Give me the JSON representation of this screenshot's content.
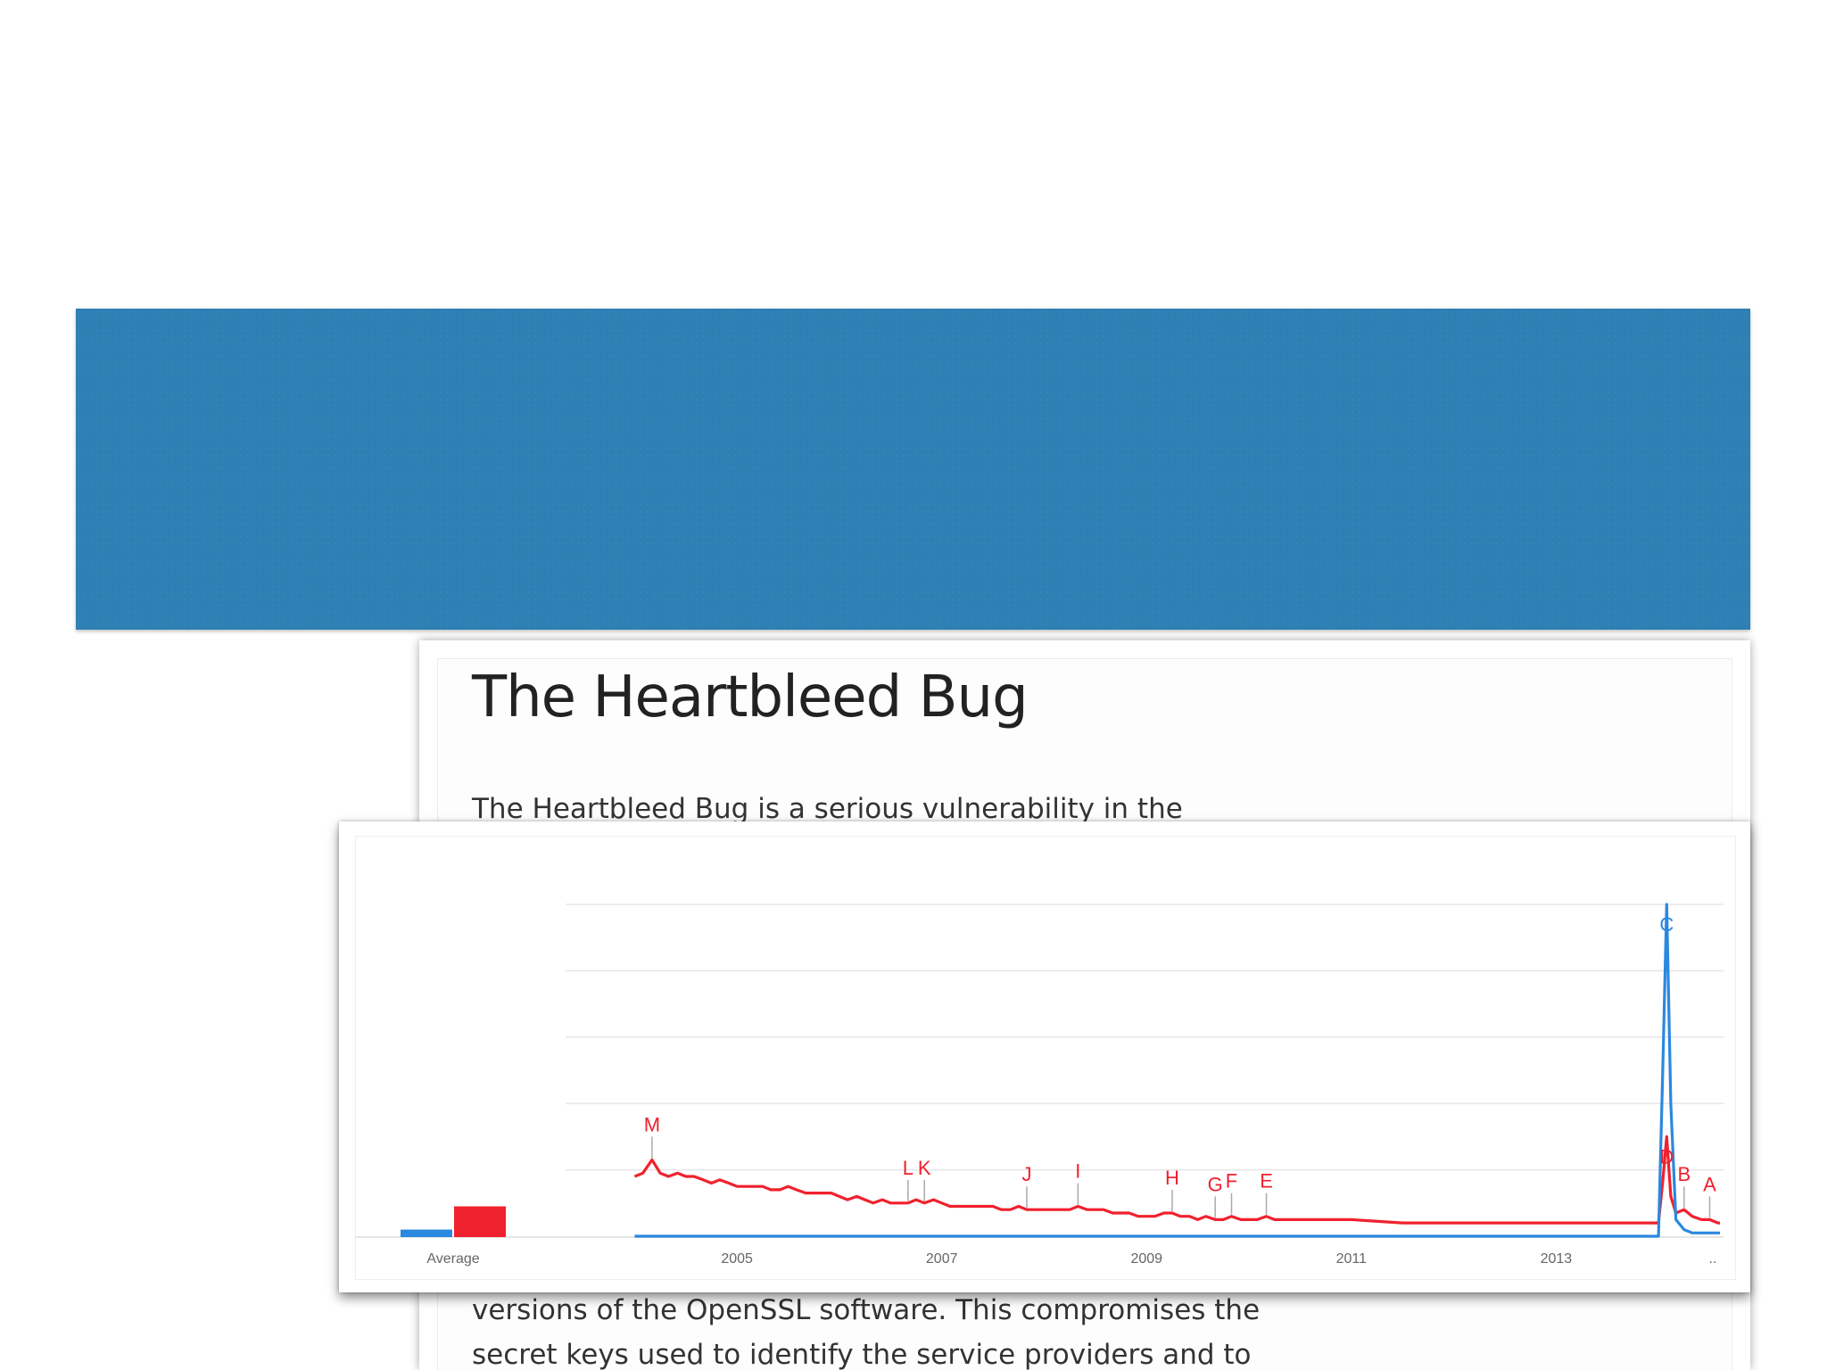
{
  "article": {
    "title": "The Heartbleed Bug",
    "line_1": "The Heartbleed Bug is a serious vulnerability in the",
    "line_2": "versions of the OpenSSL software. This compromises the",
    "line_3": "secret keys used to identify the service providers and to"
  },
  "colors": {
    "banner": "#2e80b4",
    "series_red": "#f0212e",
    "series_blue": "#2b88df",
    "grid": "#e6e6e6",
    "axis_text": "#666666"
  },
  "chart_data": {
    "type": "line",
    "title": "",
    "xlabel": "",
    "ylabel": "",
    "x_range": [
      2003.5,
      2014.6
    ],
    "ylim": [
      0,
      100
    ],
    "grid": true,
    "gridlines_y": [
      20,
      40,
      60,
      80,
      100
    ],
    "x_ticks": [
      {
        "x": 2005,
        "label": "2005"
      },
      {
        "x": 2007,
        "label": "2007"
      },
      {
        "x": 2009,
        "label": "2009"
      },
      {
        "x": 2011,
        "label": "2011"
      },
      {
        "x": 2013,
        "label": "2013"
      }
    ],
    "x_end_label": "..",
    "average": {
      "label": "Average",
      "values": [
        {
          "color": "#2b88df",
          "value": 2
        },
        {
          "color": "#f0212e",
          "value": 9
        }
      ]
    },
    "series": [
      {
        "color": "#f0212e",
        "points": [
          [
            2004.0,
            18
          ],
          [
            2004.08,
            19
          ],
          [
            2004.17,
            23
          ],
          [
            2004.25,
            19
          ],
          [
            2004.33,
            18
          ],
          [
            2004.42,
            19
          ],
          [
            2004.5,
            18
          ],
          [
            2004.58,
            18
          ],
          [
            2004.67,
            17
          ],
          [
            2004.75,
            16
          ],
          [
            2004.83,
            17
          ],
          [
            2004.92,
            16
          ],
          [
            2005.0,
            15
          ],
          [
            2005.08,
            15
          ],
          [
            2005.17,
            15
          ],
          [
            2005.25,
            15
          ],
          [
            2005.33,
            14
          ],
          [
            2005.42,
            14
          ],
          [
            2005.5,
            15
          ],
          [
            2005.58,
            14
          ],
          [
            2005.67,
            13
          ],
          [
            2005.75,
            13
          ],
          [
            2005.83,
            13
          ],
          [
            2005.92,
            13
          ],
          [
            2006.0,
            12
          ],
          [
            2006.08,
            11
          ],
          [
            2006.17,
            12
          ],
          [
            2006.25,
            11
          ],
          [
            2006.33,
            10
          ],
          [
            2006.42,
            11
          ],
          [
            2006.5,
            10
          ],
          [
            2006.58,
            10
          ],
          [
            2006.67,
            10
          ],
          [
            2006.75,
            11
          ],
          [
            2006.83,
            10
          ],
          [
            2006.92,
            11
          ],
          [
            2007.0,
            10
          ],
          [
            2007.08,
            9
          ],
          [
            2007.17,
            9
          ],
          [
            2007.25,
            9
          ],
          [
            2007.33,
            9
          ],
          [
            2007.42,
            9
          ],
          [
            2007.5,
            9
          ],
          [
            2007.58,
            8
          ],
          [
            2007.67,
            8
          ],
          [
            2007.75,
            9
          ],
          [
            2007.83,
            8
          ],
          [
            2007.92,
            8
          ],
          [
            2008.0,
            8
          ],
          [
            2008.08,
            8
          ],
          [
            2008.17,
            8
          ],
          [
            2008.25,
            8
          ],
          [
            2008.33,
            9
          ],
          [
            2008.42,
            8
          ],
          [
            2008.5,
            8
          ],
          [
            2008.58,
            8
          ],
          [
            2008.67,
            7
          ],
          [
            2008.75,
            7
          ],
          [
            2008.83,
            7
          ],
          [
            2008.92,
            6
          ],
          [
            2009.0,
            6
          ],
          [
            2009.08,
            6
          ],
          [
            2009.17,
            7
          ],
          [
            2009.25,
            7
          ],
          [
            2009.33,
            6
          ],
          [
            2009.42,
            6
          ],
          [
            2009.5,
            5
          ],
          [
            2009.58,
            6
          ],
          [
            2009.67,
            5
          ],
          [
            2009.75,
            5
          ],
          [
            2009.83,
            6
          ],
          [
            2009.92,
            5
          ],
          [
            2010.0,
            5
          ],
          [
            2010.08,
            5
          ],
          [
            2010.17,
            6
          ],
          [
            2010.25,
            5
          ],
          [
            2010.33,
            5
          ],
          [
            2010.5,
            5
          ],
          [
            2010.75,
            5
          ],
          [
            2011.0,
            5
          ],
          [
            2011.5,
            4
          ],
          [
            2012.0,
            4
          ],
          [
            2012.5,
            4
          ],
          [
            2013.0,
            4
          ],
          [
            2013.5,
            4
          ],
          [
            2014.0,
            4
          ],
          [
            2014.04,
            16
          ],
          [
            2014.08,
            30
          ],
          [
            2014.12,
            12
          ],
          [
            2014.17,
            7
          ],
          [
            2014.25,
            8
          ],
          [
            2014.33,
            6
          ],
          [
            2014.42,
            5
          ],
          [
            2014.5,
            5
          ],
          [
            2014.58,
            4
          ],
          [
            2014.6,
            4
          ]
        ]
      },
      {
        "color": "#2b88df",
        "points": [
          [
            2004.0,
            0
          ],
          [
            2006.0,
            0
          ],
          [
            2008.0,
            0
          ],
          [
            2010.0,
            0
          ],
          [
            2012.0,
            0
          ],
          [
            2013.0,
            0
          ],
          [
            2014.0,
            0
          ],
          [
            2014.04,
            48
          ],
          [
            2014.08,
            100
          ],
          [
            2014.12,
            40
          ],
          [
            2014.17,
            5
          ],
          [
            2014.25,
            2
          ],
          [
            2014.33,
            1
          ],
          [
            2014.45,
            1
          ],
          [
            2014.6,
            1
          ]
        ]
      }
    ],
    "annotations": [
      {
        "label": "M",
        "x": 2004.17,
        "y": 23
      },
      {
        "label": "L",
        "x": 2006.67,
        "y": 10
      },
      {
        "label": "K",
        "x": 2006.83,
        "y": 10
      },
      {
        "label": "J",
        "x": 2007.83,
        "y": 8
      },
      {
        "label": "I",
        "x": 2008.33,
        "y": 9
      },
      {
        "label": "H",
        "x": 2009.25,
        "y": 7
      },
      {
        "label": "G",
        "x": 2009.67,
        "y": 5
      },
      {
        "label": "F",
        "x": 2009.83,
        "y": 6
      },
      {
        "label": "E",
        "x": 2010.17,
        "y": 6
      },
      {
        "label": "D",
        "x": 2014.08,
        "y": 30,
        "inline": true
      },
      {
        "label": "C",
        "x": 2014.08,
        "y": 100,
        "inline": true,
        "color": "#2b88df"
      },
      {
        "label": "B",
        "x": 2014.25,
        "y": 8
      },
      {
        "label": "A",
        "x": 2014.5,
        "y": 5
      }
    ]
  }
}
